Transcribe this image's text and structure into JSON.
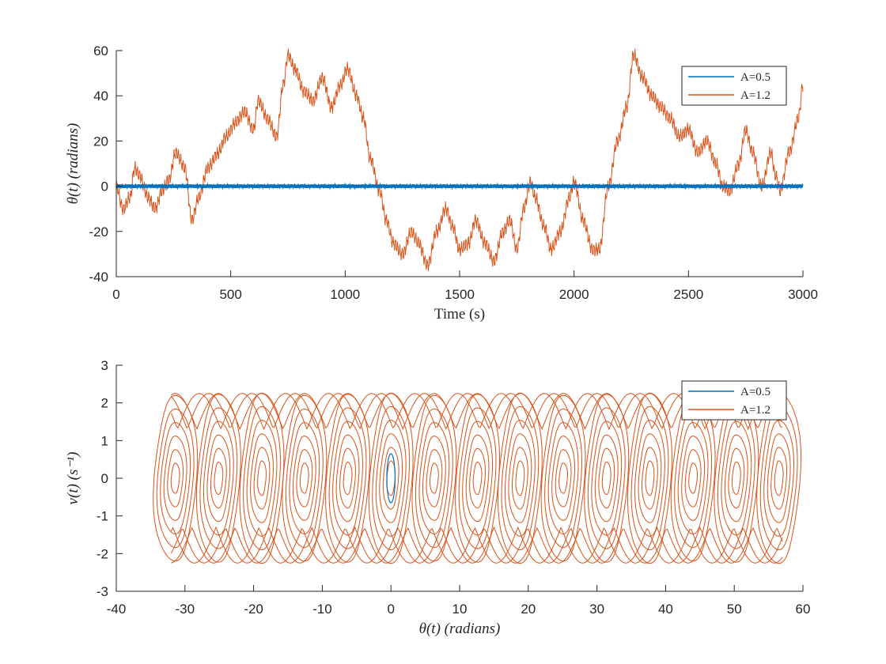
{
  "chart_data": [
    {
      "type": "line",
      "xlabel": "Time (s)",
      "ylabel": "θ(t) (radians)",
      "xlim": [
        0,
        3000
      ],
      "ylim": [
        -40,
        60
      ],
      "xticks": [
        "0",
        "500",
        "1000",
        "1500",
        "2000",
        "2500",
        "3000"
      ],
      "yticks": [
        "-40",
        "-20",
        "0",
        "20",
        "40",
        "60"
      ],
      "legend_position": "top-right",
      "grid": false,
      "series": [
        {
          "name": "A=0.5",
          "color": "#0072BD",
          "note_pattern": "small oscillation about 0",
          "amplitude": 0.8,
          "x": [
            0,
            3000
          ],
          "y": [
            0,
            0
          ]
        },
        {
          "name": "A=1.2",
          "color": "#D95319",
          "x": [
            0,
            30,
            60,
            80,
            100,
            140,
            170,
            200,
            230,
            260,
            300,
            330,
            360,
            400,
            440,
            480,
            520,
            560,
            600,
            620,
            660,
            700,
            730,
            750,
            780,
            820,
            860,
            900,
            940,
            980,
            1010,
            1050,
            1080,
            1110,
            1150,
            1180,
            1210,
            1250,
            1290,
            1320,
            1360,
            1400,
            1440,
            1470,
            1500,
            1540,
            1570,
            1610,
            1650,
            1690,
            1720,
            1750,
            1780,
            1810,
            1830,
            1870,
            1900,
            1940,
            1980,
            2000,
            2040,
            2080,
            2110,
            2150,
            2190,
            2230,
            2260,
            2300,
            2340,
            2380,
            2420,
            2460,
            2500,
            2540,
            2580,
            2620,
            2650,
            2680,
            2720,
            2750,
            2780,
            2820,
            2860,
            2880,
            2900,
            2940,
            2980,
            3000
          ],
          "y": [
            0,
            -10,
            -5,
            8,
            5,
            -5,
            -10,
            -2,
            3,
            15,
            8,
            -15,
            -5,
            8,
            14,
            22,
            28,
            33,
            25,
            38,
            30,
            22,
            45,
            58,
            52,
            42,
            38,
            48,
            35,
            45,
            52,
            40,
            30,
            12,
            -2,
            -15,
            -25,
            -30,
            -20,
            -25,
            -35,
            -20,
            -10,
            -18,
            -28,
            -25,
            -15,
            -25,
            -33,
            -20,
            -15,
            -28,
            -10,
            2,
            -5,
            -18,
            -28,
            -20,
            -5,
            2,
            -15,
            -28,
            -28,
            0,
            20,
            35,
            58,
            48,
            40,
            35,
            30,
            22,
            25,
            15,
            20,
            10,
            0,
            -2,
            10,
            25,
            15,
            0,
            15,
            5,
            -2,
            15,
            30,
            45
          ]
        }
      ]
    },
    {
      "type": "line",
      "xlabel": "θ(t) (radians)",
      "ylabel": "v(t) (s⁻¹)",
      "xlim": [
        -40,
        60
      ],
      "ylim": [
        -3,
        3
      ],
      "xticks": [
        "-40",
        "-30",
        "-20",
        "-10",
        "0",
        "10",
        "20",
        "30",
        "40",
        "50",
        "60"
      ],
      "yticks": [
        "-3",
        "-2",
        "-1",
        "0",
        "1",
        "2",
        "3"
      ],
      "legend_position": "top-right",
      "grid": false,
      "series": [
        {
          "name": "A=0.5",
          "color": "#0072BD",
          "center": [
            0,
            0
          ],
          "x_radius": 0.6,
          "y_radius": 0.65
        },
        {
          "name": "A=1.2",
          "color": "#D95319",
          "lobe_centers": [
            -31.4,
            -25.1,
            -18.8,
            -12.6,
            -6.3,
            0,
            6.3,
            12.6,
            18.8,
            25.1,
            31.4,
            37.7,
            44.0,
            50.3,
            56.5
          ],
          "x_range": [
            -35,
            59
          ],
          "v_extent": [
            -2.35,
            2.35
          ]
        }
      ]
    }
  ]
}
